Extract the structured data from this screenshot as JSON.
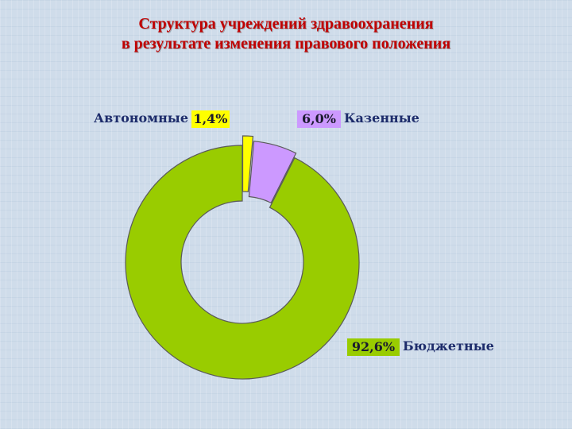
{
  "title": {
    "line1": "Структура учреждений здравоохранения",
    "line2": "в результате изменения правового положения"
  },
  "colors": {
    "background": "#cfdcea",
    "title": "#c00000",
    "slice_border": "#5a5a5a"
  },
  "chart_data": {
    "type": "pie",
    "variant": "doughnut",
    "exploded": true,
    "title": "Структура учреждений здравоохранения в результате изменения правового положения",
    "legend": "none",
    "slices": [
      {
        "label": "Автономные",
        "value": 1.4,
        "value_label": "1,4%",
        "color": "#ffff00"
      },
      {
        "label": "Казенные",
        "value": 6.0,
        "value_label": "6,0%",
        "color": "#cc99ff"
      },
      {
        "label": "Бюджетные",
        "value": 92.6,
        "value_label": "92,6%",
        "color": "#99cc00"
      }
    ]
  }
}
